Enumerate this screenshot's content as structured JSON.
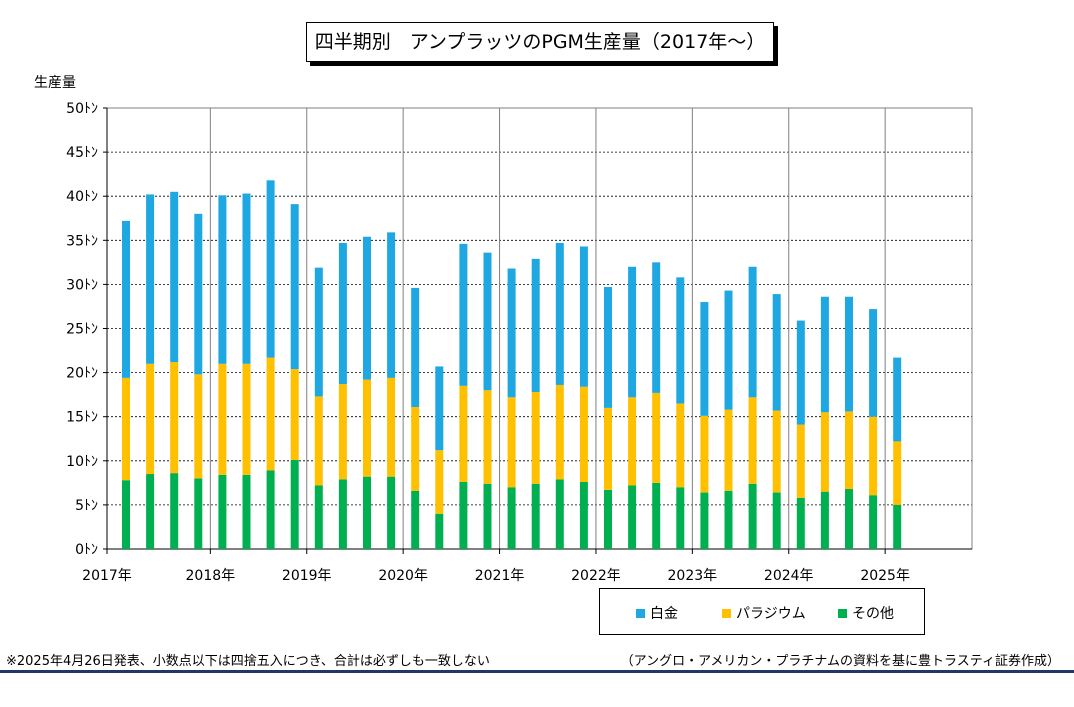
{
  "title": "四半期別　アンプラッツのPGM生産量（2017年～）",
  "ylabel": "生産量",
  "legend": [
    {
      "label": "白金",
      "color": "#1ea7e1"
    },
    {
      "label": "パラジウム",
      "color": "#ffc000"
    },
    {
      "label": "その他",
      "color": "#00b050"
    }
  ],
  "footnote": "※2025年4月26日発表、小数点以下は四捨五入につき、合計は必ずしも一致しない",
  "source": "（アングロ・アメリカン・プラチナムの資料を基に豊トラスティ証券作成）",
  "chart_data": {
    "type": "bar",
    "stacked": true,
    "title": "四半期別　アンプラッツのPGM生産量（2017年～）",
    "ylabel": "生産量",
    "ylim": [
      0,
      50
    ],
    "yticks": [
      0,
      5,
      10,
      15,
      20,
      25,
      30,
      35,
      40,
      45,
      50
    ],
    "ytick_labels": [
      "0ﾄﾝ",
      "5ﾄﾝ",
      "10ﾄﾝ",
      "15ﾄﾝ",
      "20ﾄﾝ",
      "25ﾄﾝ",
      "30ﾄﾝ",
      "35ﾄﾝ",
      "40ﾄﾝ",
      "45ﾄﾝ",
      "50ﾄﾝ"
    ],
    "year_labels": [
      "2017年",
      "2018年",
      "2019年",
      "2020年",
      "2021年",
      "2022年",
      "2023年",
      "2024年",
      "2025年"
    ],
    "categories": [
      "2017Q1",
      "2017Q2",
      "2017Q3",
      "2017Q4",
      "2018Q1",
      "2018Q2",
      "2018Q3",
      "2018Q4",
      "2019Q1",
      "2019Q2",
      "2019Q3",
      "2019Q4",
      "2020Q1",
      "2020Q2",
      "2020Q3",
      "2020Q4",
      "2021Q1",
      "2021Q2",
      "2021Q3",
      "2021Q4",
      "2022Q1",
      "2022Q2",
      "2022Q3",
      "2022Q4",
      "2023Q1",
      "2023Q2",
      "2023Q3",
      "2023Q4",
      "2024Q1",
      "2024Q2",
      "2024Q3",
      "2024Q4",
      "2025Q1"
    ],
    "grid": true,
    "legend_position": "bottom-right",
    "series": [
      {
        "name": "その他",
        "color": "#00b050",
        "values": [
          7.8,
          8.5,
          8.6,
          8.0,
          8.4,
          8.4,
          8.9,
          10.1,
          7.2,
          7.9,
          8.2,
          8.2,
          6.6,
          4.0,
          7.6,
          7.4,
          7.0,
          7.4,
          7.9,
          7.6,
          6.7,
          7.2,
          7.5,
          7.0,
          6.4,
          6.6,
          7.4,
          6.4,
          5.8,
          6.5,
          6.8,
          6.1,
          5.0
        ]
      },
      {
        "name": "パラジウム",
        "color": "#ffc000",
        "values": [
          11.6,
          12.5,
          12.6,
          11.8,
          12.6,
          12.6,
          12.8,
          10.3,
          10.1,
          10.8,
          11.0,
          11.2,
          9.5,
          7.2,
          10.9,
          10.6,
          10.2,
          10.4,
          10.7,
          10.8,
          9.3,
          10.0,
          10.2,
          9.5,
          8.7,
          9.2,
          9.8,
          9.3,
          8.3,
          9.0,
          8.8,
          8.9,
          7.2
        ]
      },
      {
        "name": "白金",
        "color": "#1ea7e1",
        "values": [
          17.8,
          19.2,
          19.3,
          18.2,
          19.1,
          19.3,
          20.1,
          18.7,
          14.6,
          16.0,
          16.2,
          16.5,
          13.5,
          9.5,
          16.1,
          15.6,
          14.6,
          15.1,
          16.1,
          15.9,
          13.7,
          14.8,
          14.8,
          14.3,
          12.9,
          13.5,
          14.8,
          13.2,
          11.8,
          13.1,
          13.0,
          12.2,
          9.5
        ]
      }
    ]
  }
}
